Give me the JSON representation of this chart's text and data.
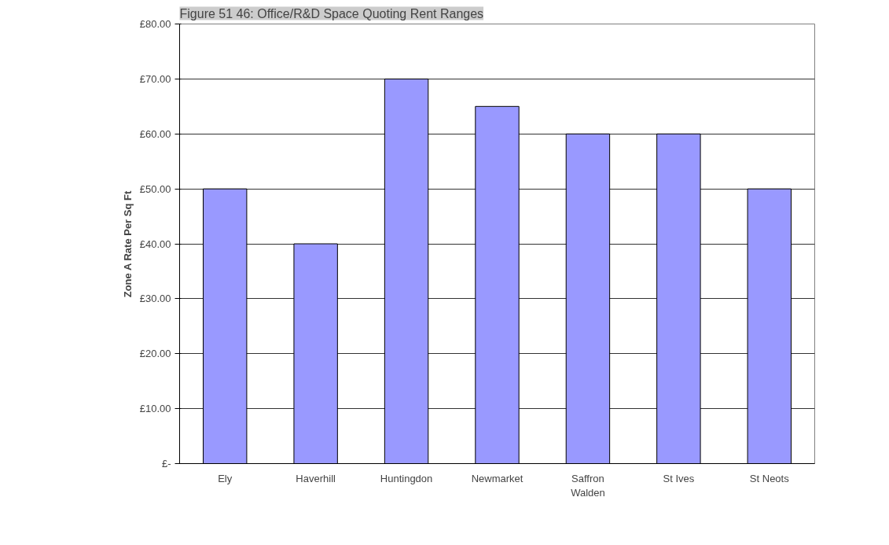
{
  "chart_data": {
    "type": "bar",
    "title": "Figure 51 46: Office/R&D Space Quoting Rent Ranges",
    "ylabel": "Zone A Rate Per Sq Ft",
    "categories": [
      "Ely",
      "Haverhill",
      "Huntingdon",
      "Newmarket",
      "Saffron Walden",
      "St Ives",
      "St Neots"
    ],
    "values": [
      50,
      40,
      70,
      65,
      60,
      60,
      50
    ],
    "color": "#9999ff",
    "ylim": [
      0,
      80
    ],
    "yticks": [
      {
        "value": 0,
        "label": "£-"
      },
      {
        "value": 10,
        "label": "£10.00"
      },
      {
        "value": 20,
        "label": "£20.00"
      },
      {
        "value": 30,
        "label": "£30.00"
      },
      {
        "value": 40,
        "label": "£40.00"
      },
      {
        "value": 50,
        "label": "£50.00"
      },
      {
        "value": 60,
        "label": "£60.00"
      },
      {
        "value": 70,
        "label": "£70.00"
      },
      {
        "value": 80,
        "label": "£80.00"
      }
    ],
    "grid": "y"
  }
}
